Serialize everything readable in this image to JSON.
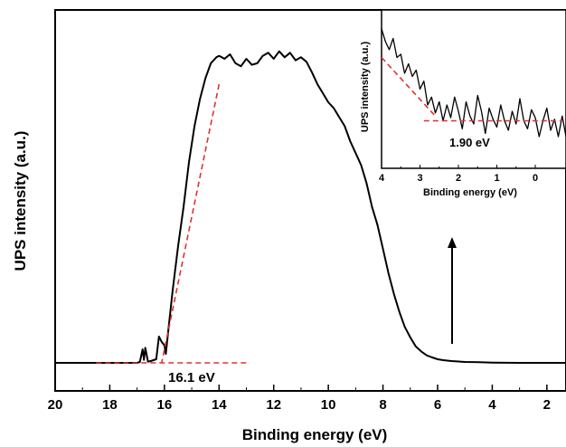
{
  "chart_data": [
    {
      "type": "line",
      "title": "",
      "xlabel": "Binding energy (eV)",
      "ylabel": "UPS intensity (a.u.)",
      "xlim": [
        20,
        1.3
      ],
      "ylim": [
        0,
        1.1
      ],
      "x_reversed": true,
      "x_ticks": [
        20,
        18,
        16,
        14,
        12,
        10,
        8,
        6,
        4,
        2
      ],
      "x_tick_labels": [
        "20",
        "18",
        "16",
        "14",
        "12",
        "10",
        "8",
        "6",
        "4",
        "2"
      ],
      "y_ticks_visible": false,
      "grid": false,
      "legend": "none",
      "series": [
        {
          "color": "#000000",
          "x": [
            20,
            18,
            17,
            16.9,
            16.8,
            16.75,
            16.7,
            16.6,
            16.5,
            16.3,
            16.2,
            16.1,
            16.0,
            15.95,
            15.85,
            15.7,
            15.5,
            15.3,
            15.1,
            14.9,
            14.7,
            14.5,
            14.3,
            14.1,
            14.0,
            13.9,
            13.8,
            13.6,
            13.4,
            13.2,
            13.0,
            12.8,
            12.6,
            12.4,
            12.2,
            12.0,
            11.8,
            11.6,
            11.4,
            11.2,
            11.0,
            10.8,
            10.6,
            10.4,
            10.2,
            10.0,
            9.8,
            9.6,
            9.4,
            9.2,
            9.0,
            8.8,
            8.6,
            8.4,
            8.2,
            8.0,
            7.8,
            7.6,
            7.4,
            7.2,
            7.0,
            6.8,
            6.6,
            6.4,
            6.2,
            6.0,
            5.8,
            5.5,
            5.0,
            4.5,
            4.0,
            3.0,
            2.0,
            1.3
          ],
          "y": [
            0,
            0,
            0,
            0.003,
            0.045,
            0.01,
            0.05,
            0.004,
            0.006,
            0.012,
            0.088,
            0.07,
            0.058,
            0.03,
            0.115,
            0.24,
            0.39,
            0.52,
            0.67,
            0.79,
            0.88,
            0.95,
            1.0,
            1.02,
            1.025,
            1.02,
            1.015,
            1.03,
            1.0,
            0.99,
            1.015,
            0.995,
            1.0,
            1.025,
            1.035,
            1.015,
            1.04,
            1.02,
            1.035,
            1.01,
            1.02,
            1.005,
            0.97,
            0.93,
            0.9,
            0.87,
            0.85,
            0.82,
            0.79,
            0.74,
            0.7,
            0.66,
            0.6,
            0.52,
            0.46,
            0.38,
            0.3,
            0.23,
            0.17,
            0.12,
            0.085,
            0.055,
            0.038,
            0.025,
            0.018,
            0.012,
            0.009,
            0.006,
            0.003,
            0.002,
            0.001,
            0.0,
            0.0,
            0.0
          ]
        },
        {
          "color": "#e03030",
          "dashed": true,
          "x": [
            14.0,
            16.1
          ],
          "y": [
            0.93,
            0.0
          ]
        },
        {
          "color": "#e03030",
          "dashed": true,
          "x": [
            18.5,
            13.0
          ],
          "y": [
            0.0,
            0.0
          ]
        }
      ],
      "annotations": [
        {
          "text": "16.1 eV",
          "x": 14.8,
          "y": -0.04
        },
        {
          "arrow": "up",
          "x": 5.5,
          "y_from": 0.06,
          "y_to": 0.36
        }
      ]
    },
    {
      "type": "line",
      "title": "",
      "xlabel": "Binding energy (eV)",
      "ylabel": "UPS intensity (a.u.)",
      "xlim": [
        4,
        -0.8
      ],
      "ylim": [
        0,
        1
      ],
      "x_reversed": true,
      "x_ticks": [
        4,
        3,
        2,
        1,
        0
      ],
      "x_tick_labels": [
        "4",
        "3",
        "2",
        "1",
        "0"
      ],
      "y_ticks_visible": false,
      "grid": false,
      "legend": "none",
      "series": [
        {
          "color": "#000000",
          "x": [
            4.0,
            3.9,
            3.8,
            3.7,
            3.6,
            3.5,
            3.4,
            3.3,
            3.2,
            3.1,
            3.0,
            2.9,
            2.8,
            2.7,
            2.6,
            2.5,
            2.4,
            2.3,
            2.2,
            2.1,
            2.0,
            1.9,
            1.8,
            1.7,
            1.6,
            1.5,
            1.4,
            1.3,
            1.2,
            1.1,
            1.0,
            0.9,
            0.8,
            0.7,
            0.6,
            0.5,
            0.4,
            0.3,
            0.2,
            0.1,
            0.0,
            -0.1,
            -0.2,
            -0.3,
            -0.4,
            -0.5,
            -0.6,
            -0.7,
            -0.8
          ],
          "y": [
            0.88,
            0.8,
            0.75,
            0.82,
            0.7,
            0.72,
            0.6,
            0.66,
            0.58,
            0.62,
            0.5,
            0.55,
            0.4,
            0.45,
            0.35,
            0.42,
            0.3,
            0.4,
            0.32,
            0.45,
            0.36,
            0.25,
            0.42,
            0.33,
            0.28,
            0.46,
            0.36,
            0.22,
            0.38,
            0.31,
            0.26,
            0.4,
            0.3,
            0.24,
            0.36,
            0.28,
            0.44,
            0.3,
            0.25,
            0.37,
            0.32,
            0.2,
            0.3,
            0.38,
            0.24,
            0.31,
            0.2,
            0.33,
            0.2
          ]
        },
        {
          "color": "#e03030",
          "dashed": true,
          "x": [
            4.0,
            2.6
          ],
          "y": [
            0.7,
            0.33
          ]
        },
        {
          "color": "#e03030",
          "dashed": true,
          "x": [
            2.9,
            -0.7
          ],
          "y": [
            0.3,
            0.3
          ]
        }
      ],
      "annotations": [
        {
          "text": "1.90 eV",
          "x": 1.5,
          "y": 0.16
        }
      ]
    }
  ]
}
